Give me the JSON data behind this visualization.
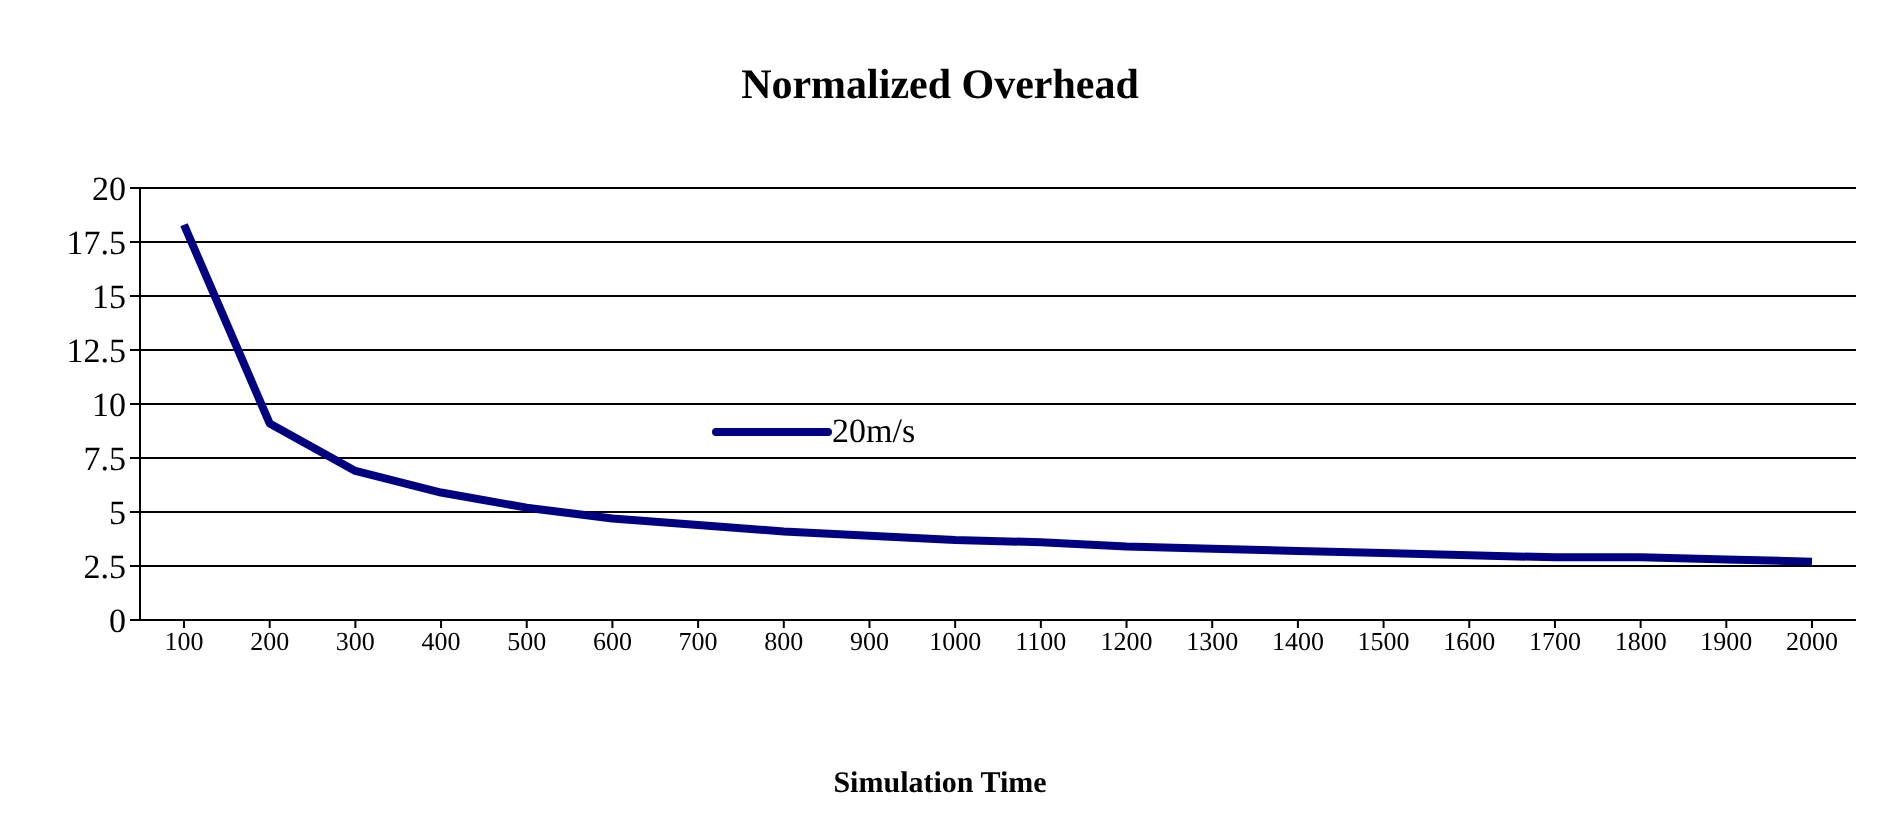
{
  "chart_data": {
    "type": "line",
    "title": "Normalized Overhead",
    "xlabel": "Simulation Time",
    "categories": [
      "100",
      "200",
      "300",
      "400",
      "500",
      "600",
      "700",
      "800",
      "900",
      "1000",
      "1100",
      "1200",
      "1300",
      "1400",
      "1500",
      "1600",
      "1700",
      "1800",
      "1900",
      "2000"
    ],
    "series": [
      {
        "name": "20m/s",
        "color": "#000080",
        "values": [
          18.3,
          9.1,
          6.9,
          5.9,
          5.2,
          4.7,
          4.4,
          4.1,
          3.9,
          3.7,
          3.6,
          3.4,
          3.3,
          3.2,
          3.1,
          3.0,
          2.9,
          2.9,
          2.8,
          2.7
        ]
      }
    ],
    "ylim": [
      0,
      20
    ],
    "yticks": [
      0,
      2.5,
      5,
      7.5,
      10,
      12.5,
      15,
      17.5,
      20
    ],
    "grid": "y",
    "legend": "center",
    "marker": "none",
    "line_style": "solid"
  }
}
